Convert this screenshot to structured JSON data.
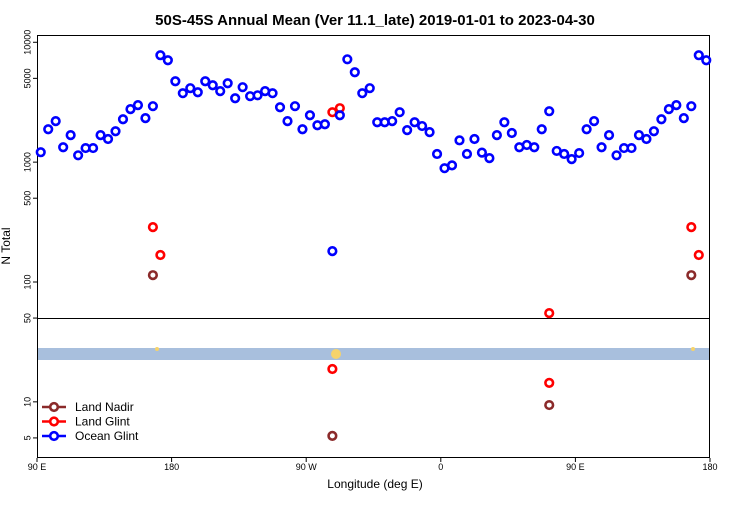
{
  "chart_data": {
    "type": "scatter",
    "title": "50S-45S Annual Mean (Ver 11.1_late)   2019-01-01 to 2023-04-30",
    "xlabel": "Longitude (deg E)",
    "ylabel": "N Total",
    "xlim": [
      90,
      540
    ],
    "xticks": [
      {
        "value": 90,
        "label": "90 E"
      },
      180,
      {
        "value": 270,
        "label": "90 W"
      },
      {
        "value": 360,
        "label": "0"
      },
      {
        "value": 450,
        "label": "90 E"
      },
      {
        "value": 540,
        "label": "180"
      }
    ],
    "ylim": [
      3.4,
      11500
    ],
    "log_y": true,
    "yticks": [
      5,
      10,
      50,
      100,
      500,
      1000,
      5000,
      10000
    ],
    "legend": "lower left",
    "series": [
      {
        "name": "Land Nadir",
        "color": "#8b2a2a",
        "x": [
          167.5,
          287.5,
          432.5,
          527.5
        ],
        "values": [
          114,
          5.2,
          9.4,
          114
        ]
      },
      {
        "name": "Land Glint",
        "color": "#ff0000",
        "x": [
          167.5,
          172.5,
          287.5,
          292.5,
          287.5,
          432.5,
          432.5,
          527.5,
          532.5
        ],
        "values": [
          287,
          168,
          2610,
          2820,
          18.8,
          55,
          14.4,
          287,
          168
        ]
      },
      {
        "name": "Ocean Glint",
        "color": "#0000ff",
        "x": [
          92.5,
          97.5,
          102.5,
          107.5,
          112.5,
          117.5,
          122.5,
          127.5,
          132.5,
          137.5,
          142.5,
          147.5,
          152.5,
          157.5,
          162.5,
          167.5,
          172.5,
          177.5,
          182.5,
          187.5,
          192.5,
          197.5,
          202.5,
          207.5,
          212.5,
          217.5,
          222.5,
          227.5,
          232.5,
          237.5,
          242.5,
          247.5,
          252.5,
          257.5,
          262.5,
          267.5,
          272.5,
          277.5,
          282.5,
          287.5,
          292.5,
          297.5,
          302.5,
          307.5,
          312.5,
          317.5,
          322.5,
          327.5,
          332.5,
          337.5,
          342.5,
          347.5,
          352.5,
          357.5,
          362.5,
          367.5,
          372.5,
          377.5,
          382.5,
          387.5,
          392.5,
          397.5,
          402.5,
          407.5,
          412.5,
          417.5,
          422.5,
          427.5,
          432.5,
          437.5,
          442.5,
          447.5,
          452.5,
          457.5,
          462.5,
          467.5,
          472.5,
          477.5,
          482.5,
          487.5,
          492.5,
          497.5,
          502.5,
          507.5,
          512.5,
          517.5,
          522.5,
          527.5,
          532.5,
          537.5
        ],
        "values": [
          1210,
          1880,
          2200,
          1330,
          1680,
          1140,
          1310,
          1310,
          1680,
          1560,
          1810,
          2280,
          2770,
          2990,
          2330,
          2930,
          7800,
          7080,
          4730,
          3760,
          4140,
          3830,
          4730,
          4380,
          3910,
          4550,
          3410,
          4220,
          3550,
          3610,
          3910,
          3760,
          2870,
          2200,
          2930,
          1880,
          2460,
          2030,
          2070,
          181,
          2460,
          7210,
          5620,
          3760,
          4140,
          2150,
          2150,
          2200,
          2610,
          1850,
          2150,
          2000,
          1780,
          1170,
          890,
          940,
          1520,
          1170,
          1560,
          1200,
          1080,
          1680,
          2150,
          1750,
          1330,
          1390,
          1330,
          1880,
          2660,
          1240,
          1170,
          1060,
          1190,
          1880,
          2200,
          1330,
          1680,
          1140,
          1310,
          1310,
          1680,
          1560,
          1810,
          2280,
          2770,
          2990,
          2330,
          2930,
          7800,
          7080
        ]
      }
    ]
  }
}
